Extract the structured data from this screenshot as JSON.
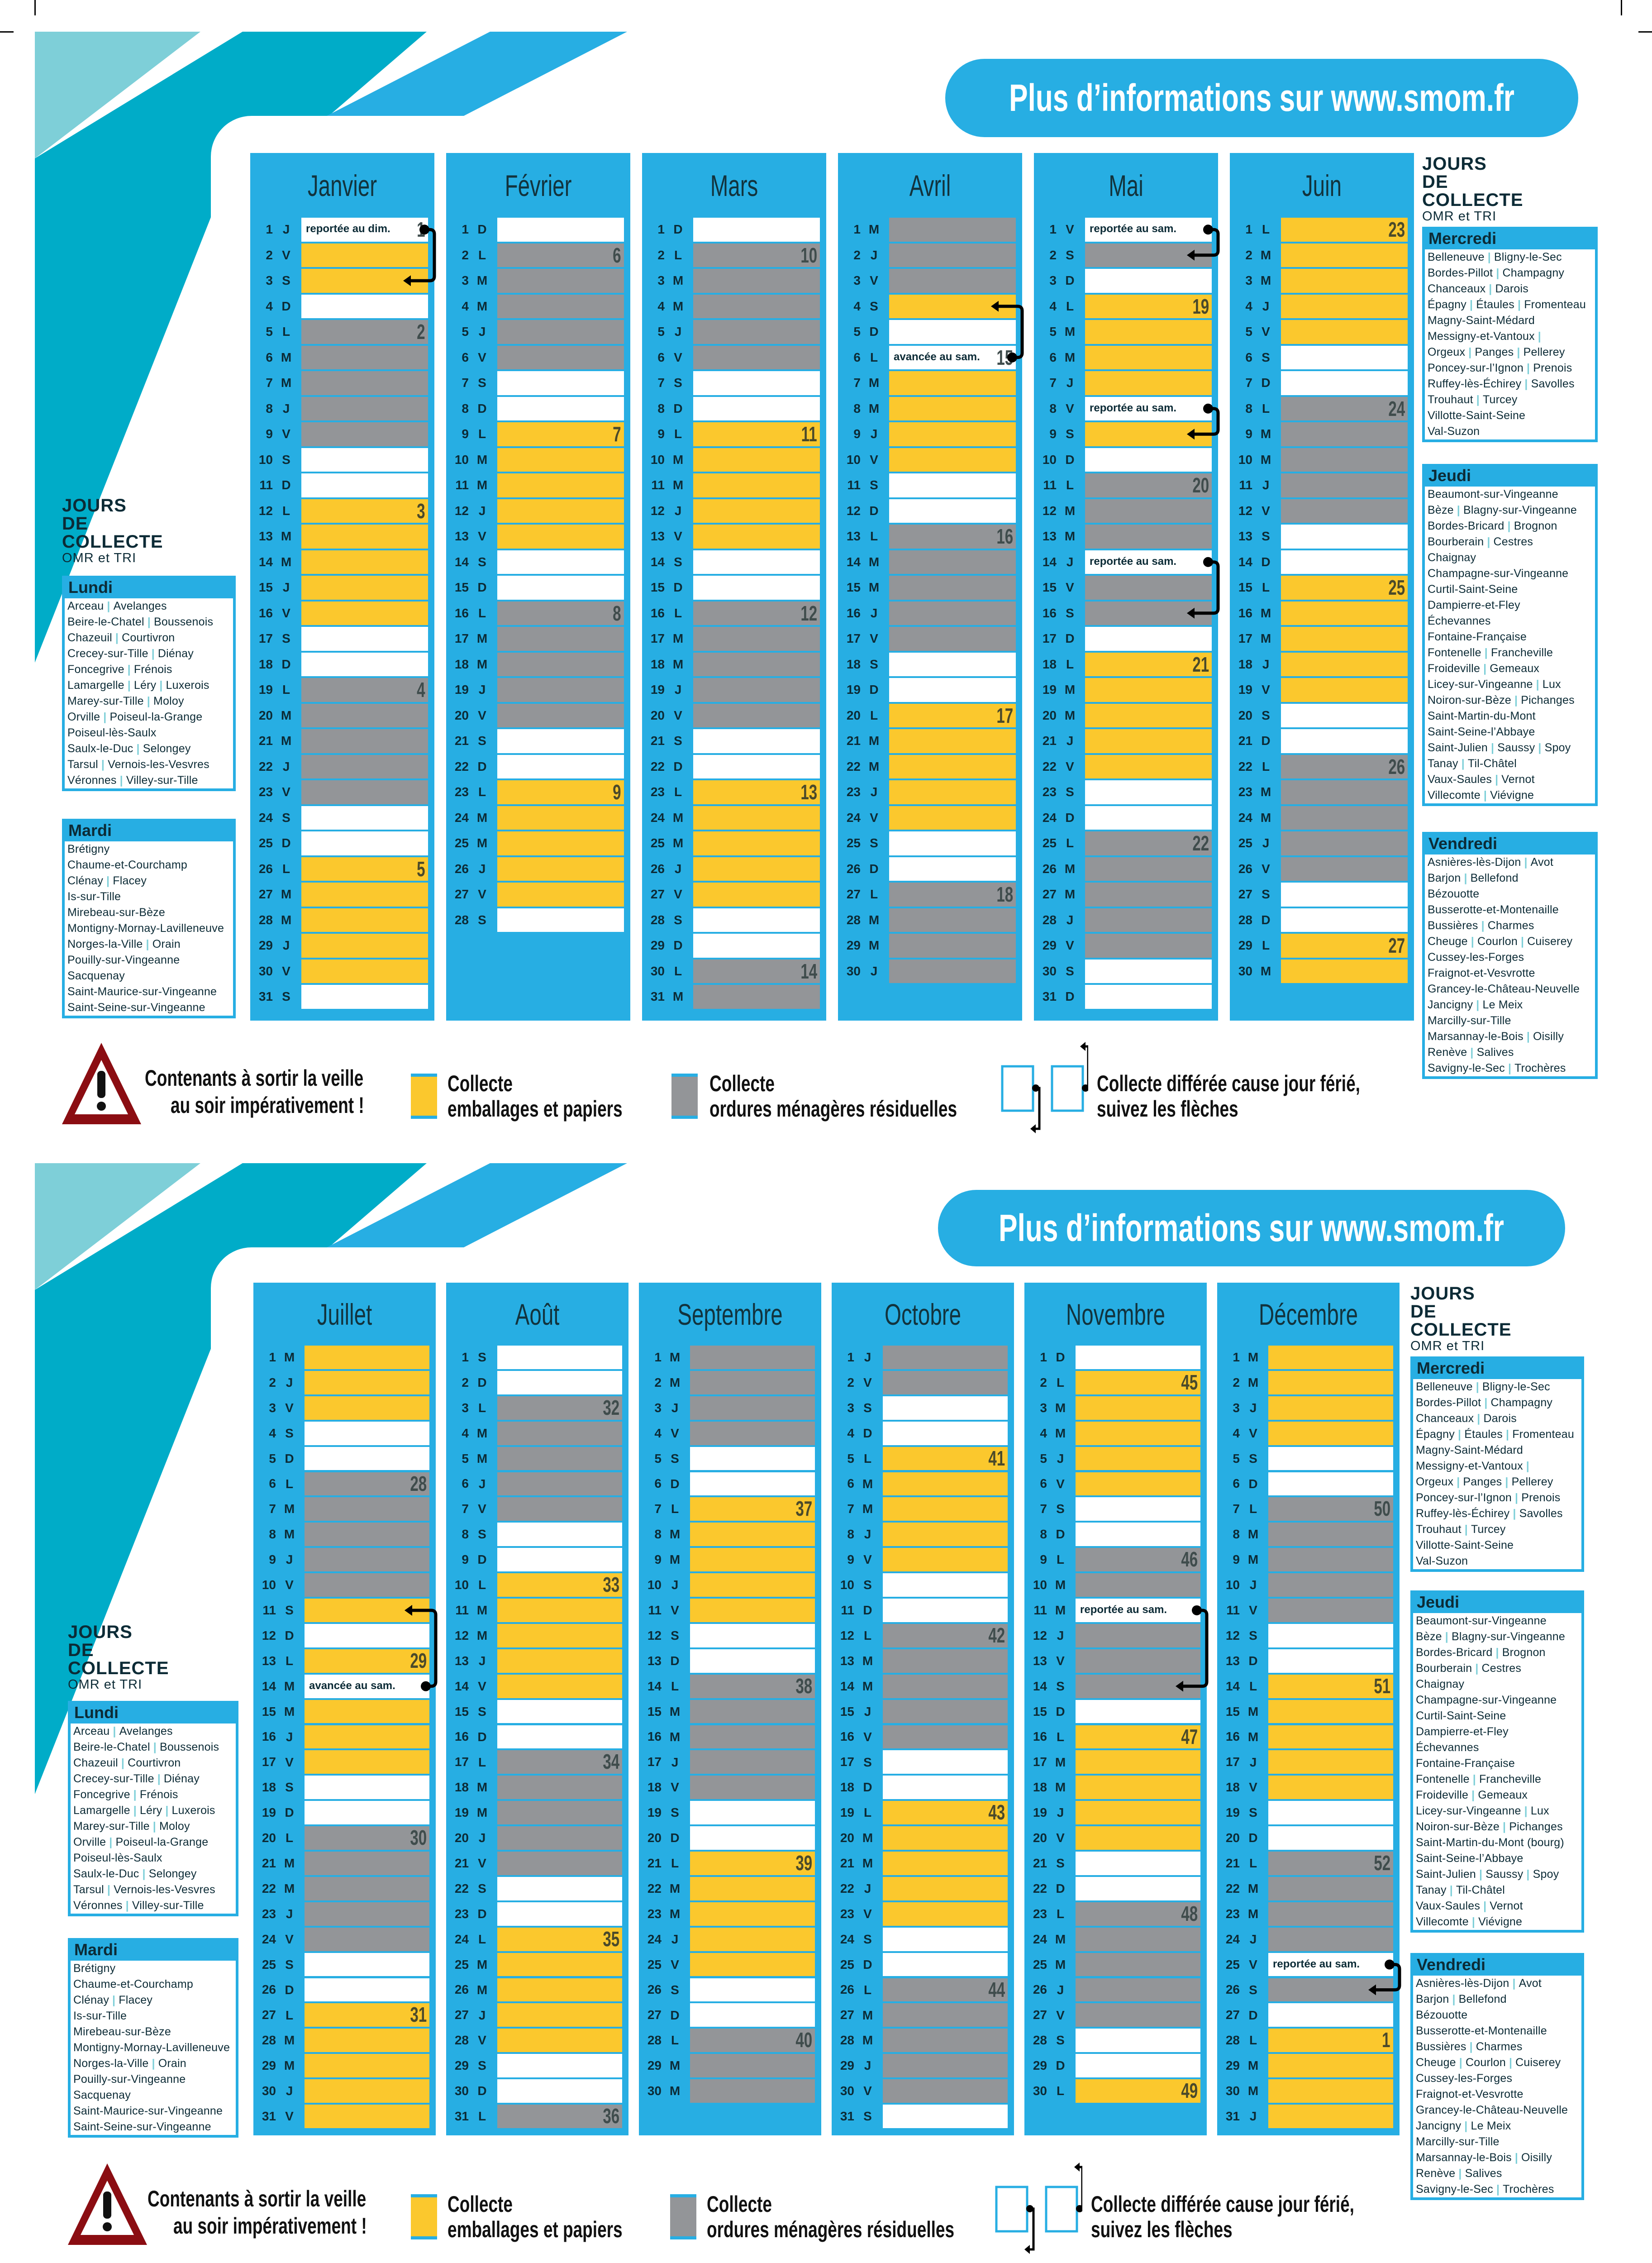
{
  "colors": {
    "blue": "#27aee3",
    "yellow": "#fbc82d",
    "gray": "#939598",
    "white": "#ffffff",
    "teal_light": "#7ecfd8",
    "teal_dark": "#00acc8",
    "warning_red": "#8b0d12"
  },
  "banner": "Plus d’informations sur www.smom.fr",
  "jours": {
    "line1": "JOURS",
    "line2": "DE COLLECTE",
    "line3": "OMR et TRI"
  },
  "legend": {
    "warning_line1": "Contenants à sortir la veille",
    "warning_line2": "au soir impérativement !",
    "yellow_line1": "Collecte",
    "yellow_line2": "emballages et papiers",
    "gray_line1": "Collecte",
    "gray_line2": "ordures ménagères résiduelles",
    "arrow_line1": "Collecte différée cause jour férié,",
    "arrow_line2": "suivez les flèches"
  },
  "communes": {
    "Lundi": [
      [
        "Arceau",
        "Avelanges"
      ],
      [
        "Beire-le-Chatel",
        "Boussenois"
      ],
      [
        "Chazeuil",
        "Courtivron"
      ],
      [
        "Crecey-sur-Tille",
        "Diénay"
      ],
      [
        "Foncegrive",
        "Frénois"
      ],
      [
        "Lamargelle",
        "Léry",
        "Luxerois"
      ],
      [
        "Marey-sur-Tille",
        "Moloy"
      ],
      [
        "Orville",
        "Poiseul-la-Grange"
      ],
      [
        "Poiseul-lès-Saulx"
      ],
      [
        "Saulx-le-Duc",
        "Selongey"
      ],
      [
        "Tarsul",
        "Vernois-les-Vesvres"
      ],
      [
        "Véronnes",
        "Villey-sur-Tille"
      ]
    ],
    "Mardi": [
      [
        "Brétigny"
      ],
      [
        "Chaume-et-Courchamp"
      ],
      [
        "Clénay",
        "Flacey"
      ],
      [
        "Is-sur-Tille"
      ],
      [
        "Mirebeau-sur-Bèze"
      ],
      [
        "Montigny-Mornay-Lavilleneuve"
      ],
      [
        "Norges-la-Ville",
        "Orain"
      ],
      [
        "Pouilly-sur-Vingeanne"
      ],
      [
        "Sacquenay"
      ],
      [
        "Saint-Maurice-sur-Vingeanne"
      ],
      [
        "Saint-Seine-sur-Vingeanne"
      ]
    ],
    "Mercredi": [
      [
        "Belleneuve",
        "Bligny-le-Sec"
      ],
      [
        "Bordes-Pillot",
        "Champagny"
      ],
      [
        "Chanceaux",
        "Darois"
      ],
      [
        "Épagny",
        "Étaules",
        "Fromenteau"
      ],
      [
        "Magny-Saint-Médard"
      ],
      [
        "Messigny-et-Vantoux",
        ""
      ],
      [
        "Orgeux",
        "Panges",
        "Pellerey"
      ],
      [
        "Poncey-sur-l’Ignon",
        "Prenois"
      ],
      [
        "Ruffey-lès-Échirey",
        "Savolles"
      ],
      [
        "Trouhaut",
        "Turcey"
      ],
      [
        "Villotte-Saint-Seine"
      ],
      [
        "Val-Suzon"
      ]
    ],
    "Jeudi": [
      [
        "Beaumont-sur-Vingeanne"
      ],
      [
        "Bèze",
        "Blagny-sur-Vingeanne"
      ],
      [
        "Bordes-Bricard",
        "Brognon"
      ],
      [
        "Bourberain",
        "Cestres"
      ],
      [
        "Chaignay"
      ],
      [
        "Champagne-sur-Vingeanne"
      ],
      [
        "Curtil-Saint-Seine"
      ],
      [
        "Dampierre-et-Fley"
      ],
      [
        "Échevannes"
      ],
      [
        "Fontaine-Française"
      ],
      [
        "Fontenelle",
        "Francheville"
      ],
      [
        "Froideville",
        "Gemeaux"
      ],
      [
        "Licey-sur-Vingeanne",
        "Lux"
      ],
      [
        "Noiron-sur-Bèze",
        "Pichanges"
      ],
      [
        "Saint-Martin-du-Mont"
      ],
      [
        "Saint-Seine-l’Abbaye"
      ],
      [
        "Saint-Julien",
        "Saussy",
        "Spoy"
      ],
      [
        "Tanay",
        "Til-Châtel"
      ],
      [
        "Vaux-Saules",
        "Vernot"
      ],
      [
        "Villecomte",
        "Viévigne"
      ]
    ],
    "Vendredi": [
      [
        "Asnières-lès-Dijon",
        "Avot"
      ],
      [
        "Barjon",
        "Bellefond"
      ],
      [
        "Bézouotte"
      ],
      [
        "Busserotte-et-Montenaille"
      ],
      [
        "Bussières",
        "Charmes"
      ],
      [
        "Cheuge",
        "Courlon",
        "Cuiserey"
      ],
      [
        "Cussey-les-Forges"
      ],
      [
        "Fraignot-et-Vesvrotte"
      ],
      [
        "Grancey-le-Château-Neuvelle"
      ],
      [
        "Jancigny",
        "Le Meix"
      ],
      [
        "Marcilly-sur-Tille"
      ],
      [
        "Marsannay-le-Bois",
        "Oisilly"
      ],
      [
        "Renève",
        "Salives"
      ],
      [
        "Savigny-le-Sec",
        "Trochères"
      ]
    ]
  },
  "halves": [
    {
      "left_groups": [
        "Lundi",
        "Mardi"
      ],
      "right_groups": [
        "Mercredi",
        "Jeudi",
        "Vendredi"
      ],
      "jeudi_override": {},
      "months": [
        {
          "name": "Janvier",
          "letters": "JVSDLMMJVSDLMMJVSDLMMJVSDLMMJVS",
          "types": "wyywgggggwwyyyyywwgggggwwyyyyyw",
          "weeks": {
            "1": "1",
            "5": "2",
            "12": "3",
            "19": "4",
            "26": "5"
          },
          "notes": {
            "1": "reportée au dim."
          },
          "arrows": [
            [
              1,
              3
            ]
          ]
        },
        {
          "name": "Février",
          "letters": "DLMMJVSDLMMJVSDLMMJVSDLMMJVS",
          "types": "wgggggwwyyyyywwgggggwwyyyyyw",
          "weeks": {
            "2": "6",
            "9": "7",
            "16": "8",
            "23": "9"
          },
          "notes": {},
          "arrows": []
        },
        {
          "name": "Mars",
          "letters": "DLMMJVSDLMMJVSDLMMJVSDLMMJVSDLM",
          "types": "wgggggwwyyyyywwgggggwwyyyyywwgg",
          "weeks": {
            "2": "10",
            "9": "11",
            "16": "12",
            "23": "13",
            "30": "14"
          },
          "notes": {},
          "arrows": []
        },
        {
          "name": "Avril",
          "letters": "MJVSDLMMJVSDLMMJVSDLMMJVSDLMMJ",
          "types": "gggywwyyyywwgggggwwyyyyywwgggg",
          "weeks": {
            "6": "15",
            "13": "16",
            "20": "17",
            "27": "18"
          },
          "notes": {
            "6": "avancée au sam."
          },
          "arrows": [
            [
              6,
              4
            ]
          ]
        },
        {
          "name": "Mai",
          "letters": "VSDLMMJVSDLMMJVSDLMMJVSDLMMJVSD",
          "types": "wgwyyyywywgggwggwyyyyywwgggggww",
          "weeks": {
            "4": "19",
            "11": "20",
            "18": "21",
            "25": "22"
          },
          "notes": {
            "1": "reportée au sam.",
            "8": "reportée au sam.",
            "14": "reportée au sam."
          },
          "arrows": [
            [
              1,
              2
            ],
            [
              8,
              9
            ],
            [
              14,
              16
            ]
          ]
        },
        {
          "name": "Juin",
          "letters": "LMMJVSDLMMJVSDLMMJVSDLMMJVSDLM",
          "types": "yyyyywwgggggwwyyyyywwgggggwwyy",
          "weeks": {
            "1": "23",
            "8": "24",
            "15": "25",
            "22": "26",
            "29": "27"
          },
          "notes": {},
          "arrows": []
        }
      ]
    },
    {
      "left_groups": [
        "Lundi",
        "Mardi"
      ],
      "right_groups": [
        "Mercredi",
        "Jeudi",
        "Vendredi"
      ],
      "jeudi_override": {
        "14": "Saint-Martin-du-Mont (bourg)"
      },
      "months": [
        {
          "name": "Juillet",
          "letters": "MJVSDLMMJVSDLMMJVSDLMMJVSDLMMJV",
          "types": "yyywwgggggywywyyywwgggggwwyyyyy",
          "weeks": {
            "6": "28",
            "13": "29",
            "20": "30",
            "27": "31"
          },
          "notes": {
            "14": "avancée au sam."
          },
          "arrows": [
            [
              14,
              11
            ]
          ]
        },
        {
          "name": "Août",
          "letters": "SDLMMJVSDLMMJVSDLMMJVSDLMMJVSDL",
          "types": "wwgggggwwyyyyywwgggggwwyyyyywwg",
          "weeks": {
            "3": "32",
            "10": "33",
            "17": "34",
            "24": "35",
            "31": "36"
          },
          "notes": {},
          "arrows": []
        },
        {
          "name": "Septembre",
          "letters": "MMJVSDLMMJVSDLMMJVSDLMMJVSDLMM",
          "types": "ggggwwyyyyywwgggggwwyyyyywwggg",
          "weeks": {
            "7": "37",
            "14": "38",
            "21": "39",
            "28": "40"
          },
          "notes": {},
          "arrows": []
        },
        {
          "name": "Octobre",
          "letters": "JVSDLMMJVSDLMMJVSDLMMJVSDLMMJVS",
          "types": "ggwwyyyyywwgggggwwyyyyywwgggggw",
          "weeks": {
            "5": "41",
            "12": "42",
            "19": "43",
            "26": "44"
          },
          "notes": {},
          "arrows": []
        },
        {
          "name": "Novembre",
          "letters": "DLMMJVSDLMMJVSDLMMJVSDLMMJVSDL",
          "types": "wyyyyywwggwgggwyyyyywwgggggwwy",
          "weeks": {
            "2": "45",
            "9": "46",
            "16": "47",
            "23": "48",
            "30": "49"
          },
          "notes": {
            "11": "reportée au sam."
          },
          "arrows": [
            [
              11,
              14
            ]
          ]
        },
        {
          "name": "Décembre",
          "letters": "MMJVSDLMMJVSDLMMJVSDLMMJVSDLMMJ",
          "types": "yyyywwgggggwwyyyyywwggggwgwyyyy",
          "weeks": {
            "7": "50",
            "14": "51",
            "21": "52",
            "28": "1"
          },
          "notes": {
            "25": "reportée au sam."
          },
          "arrows": [
            [
              25,
              26
            ]
          ]
        }
      ]
    }
  ]
}
